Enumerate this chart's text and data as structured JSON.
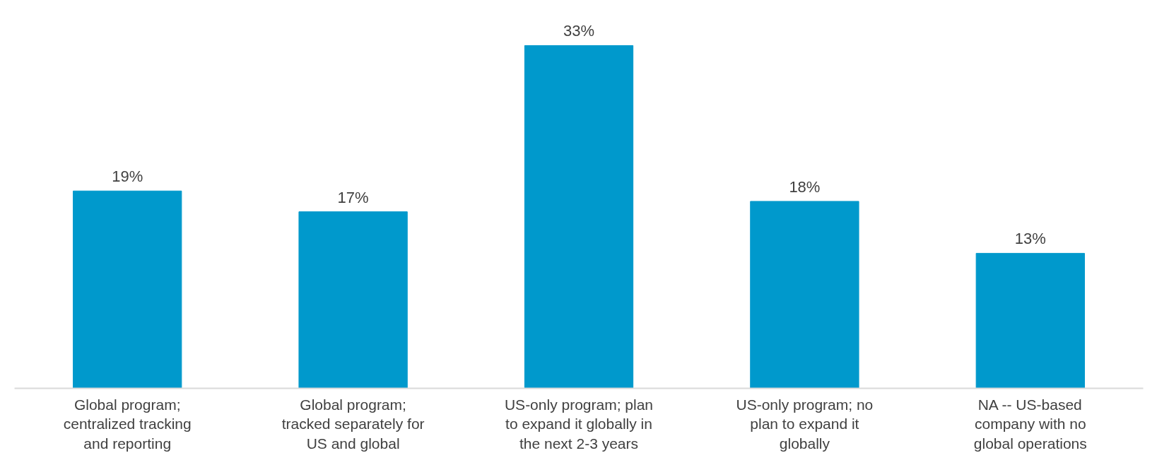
{
  "chart_data": {
    "type": "bar",
    "categories": [
      "Global program;\ncentralized tracking\nand reporting",
      "Global program;\ntracked separately for\nUS and global",
      "US-only program; plan\nto expand it globally in\nthe next 2-3 years",
      "US-only program; no\nplan to expand it\nglobally",
      "NA -- US-based\ncompany with no\nglobal operations"
    ],
    "values": [
      19,
      17,
      33,
      18,
      13
    ],
    "value_labels": [
      "19%",
      "17%",
      "33%",
      "18%",
      "13%"
    ],
    "color": "#0099cc",
    "grid": false
  }
}
